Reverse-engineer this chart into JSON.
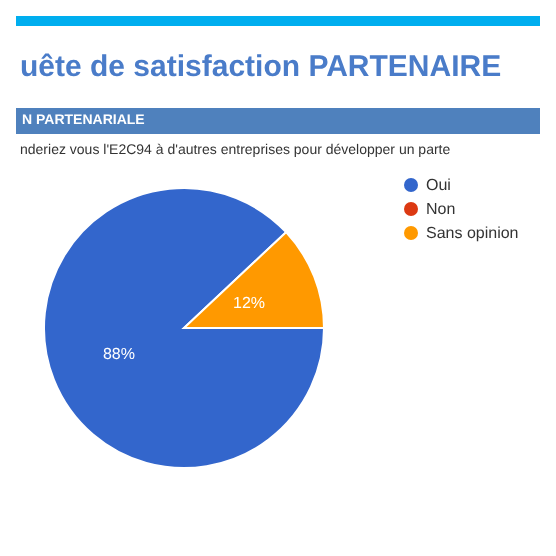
{
  "chart_data": {
    "type": "pie",
    "title": "uête de satisfaction PARTENAIRE",
    "subtitle": "N PARTENARIALE",
    "annotations": [
      "nderiez vous l'E2C94 à d'autres entreprises pour développer un parte"
    ],
    "categories": [
      "Oui",
      "Non",
      "Sans opinion"
    ],
    "values": [
      88,
      0,
      12
    ],
    "colors": [
      "#3366cc",
      "#dc3912",
      "#ff9900"
    ],
    "value_labels": [
      "88%",
      null,
      "12%"
    ],
    "legend": "top right"
  }
}
